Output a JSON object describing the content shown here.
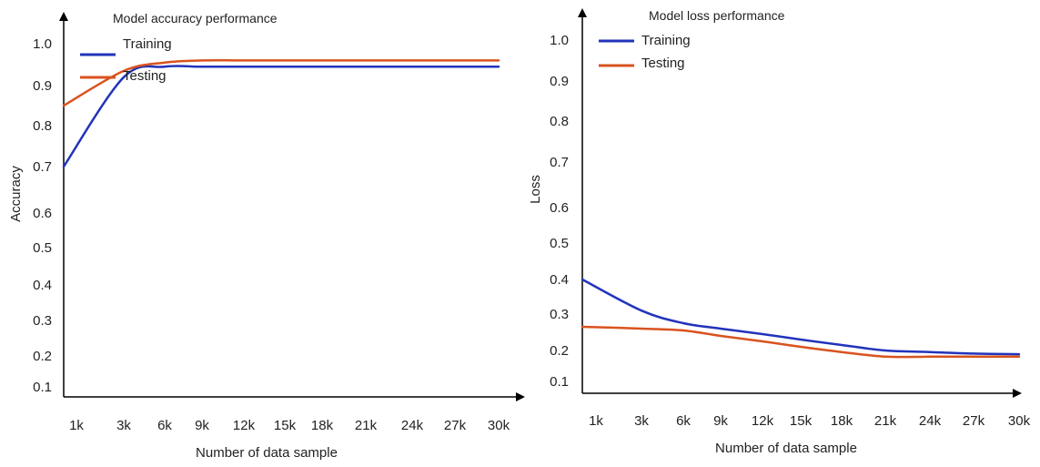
{
  "chart_data": [
    {
      "type": "line",
      "title": "Model accuracy performance",
      "xlabel": "Number of data sample",
      "ylabel": "Accuracy",
      "categories": [
        "1k",
        "3k",
        "6k",
        "9k",
        "12k",
        "15k",
        "18k",
        "21k",
        "24k",
        "27k",
        "30k"
      ],
      "yticks": [
        "0.1",
        "0.2",
        "0.3",
        "0.4",
        "0.5",
        "0.6",
        "0.7",
        "0.8",
        "0.9",
        "1.0"
      ],
      "ylim": [
        0.1,
        1.0
      ],
      "legend_position": "top-left",
      "grid": false,
      "series": [
        {
          "name": "Training",
          "color": "#2233bb",
          "values": [
            0.7,
            0.92,
            0.945,
            0.945,
            0.945,
            0.945,
            0.945,
            0.945,
            0.945,
            0.945,
            0.945
          ]
        },
        {
          "name": "Testing",
          "color": "#d9531e",
          "values": [
            0.85,
            0.935,
            0.955,
            0.96,
            0.96,
            0.96,
            0.96,
            0.96,
            0.96,
            0.96,
            0.96
          ]
        }
      ]
    },
    {
      "type": "line",
      "title": "Model loss performance",
      "xlabel": "Number of data sample",
      "ylabel": "Loss",
      "categories": [
        "1k",
        "3k",
        "6k",
        "9k",
        "12k",
        "15k",
        "18k",
        "21k",
        "24k",
        "27k",
        "30k"
      ],
      "yticks": [
        "0.1",
        "0.2",
        "0.3",
        "0.4",
        "0.5",
        "0.6",
        "0.7",
        "0.8",
        "0.9",
        "1.0"
      ],
      "ylim": [
        0.1,
        1.0
      ],
      "legend_position": "top-left",
      "grid": false,
      "series": [
        {
          "name": "Training",
          "color": "#2233bb",
          "values": [
            0.4,
            0.31,
            0.275,
            0.26,
            0.245,
            0.23,
            0.215,
            0.2,
            0.195,
            0.19,
            0.188
          ]
        },
        {
          "name": "Testing",
          "color": "#d9531e",
          "values": [
            0.265,
            0.26,
            0.255,
            0.24,
            0.225,
            0.21,
            0.195,
            0.18,
            0.18,
            0.18,
            0.18
          ]
        }
      ]
    }
  ]
}
